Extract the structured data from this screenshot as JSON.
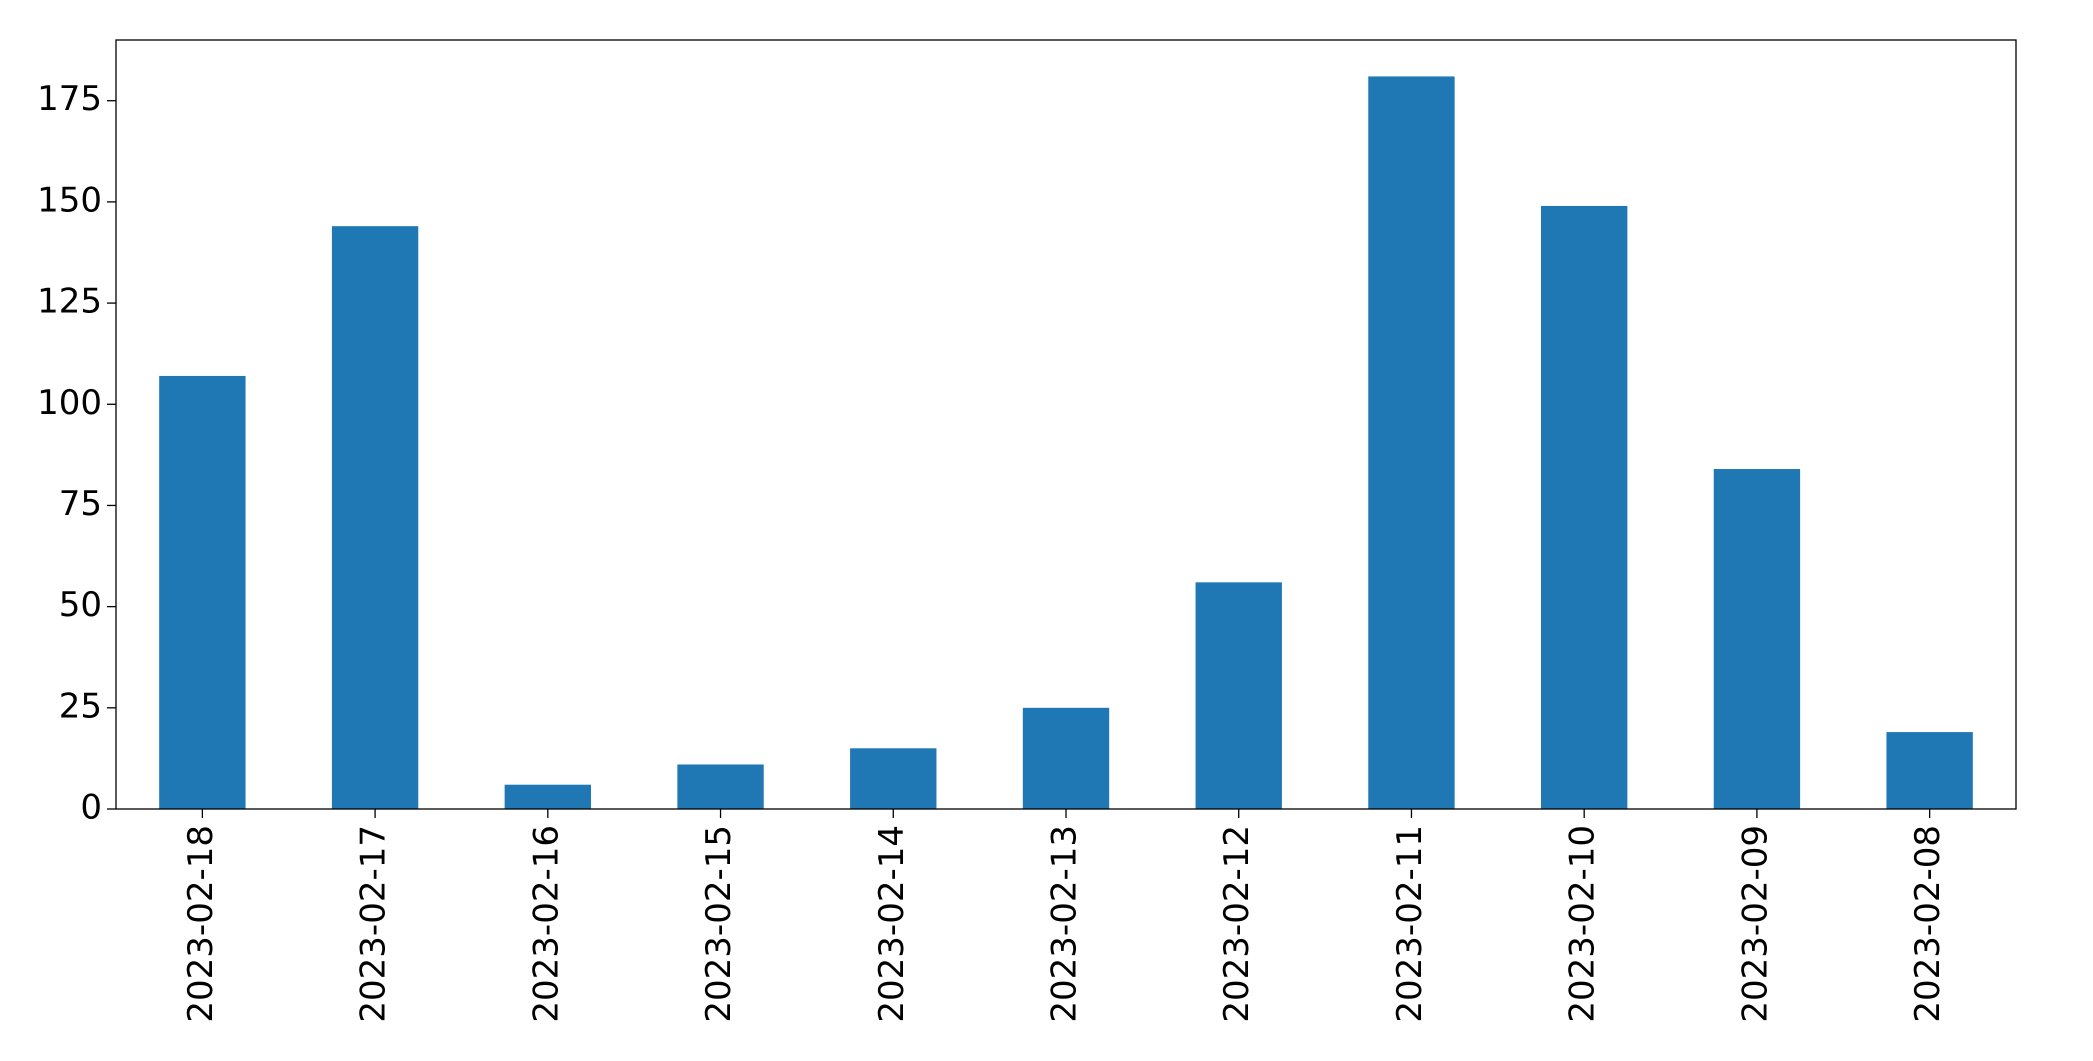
{
  "chart_data": {
    "type": "bar",
    "categories": [
      "2023-02-18",
      "2023-02-17",
      "2023-02-16",
      "2023-02-15",
      "2023-02-14",
      "2023-02-13",
      "2023-02-12",
      "2023-02-11",
      "2023-02-10",
      "2023-02-09",
      "2023-02-08"
    ],
    "values": [
      107,
      144,
      6,
      11,
      15,
      25,
      56,
      181,
      149,
      84,
      19
    ],
    "color": "#1f77b4",
    "ylim": [
      0,
      190
    ],
    "yticks": [
      0,
      25,
      50,
      75,
      100,
      125,
      150,
      175
    ],
    "grid": false
  }
}
